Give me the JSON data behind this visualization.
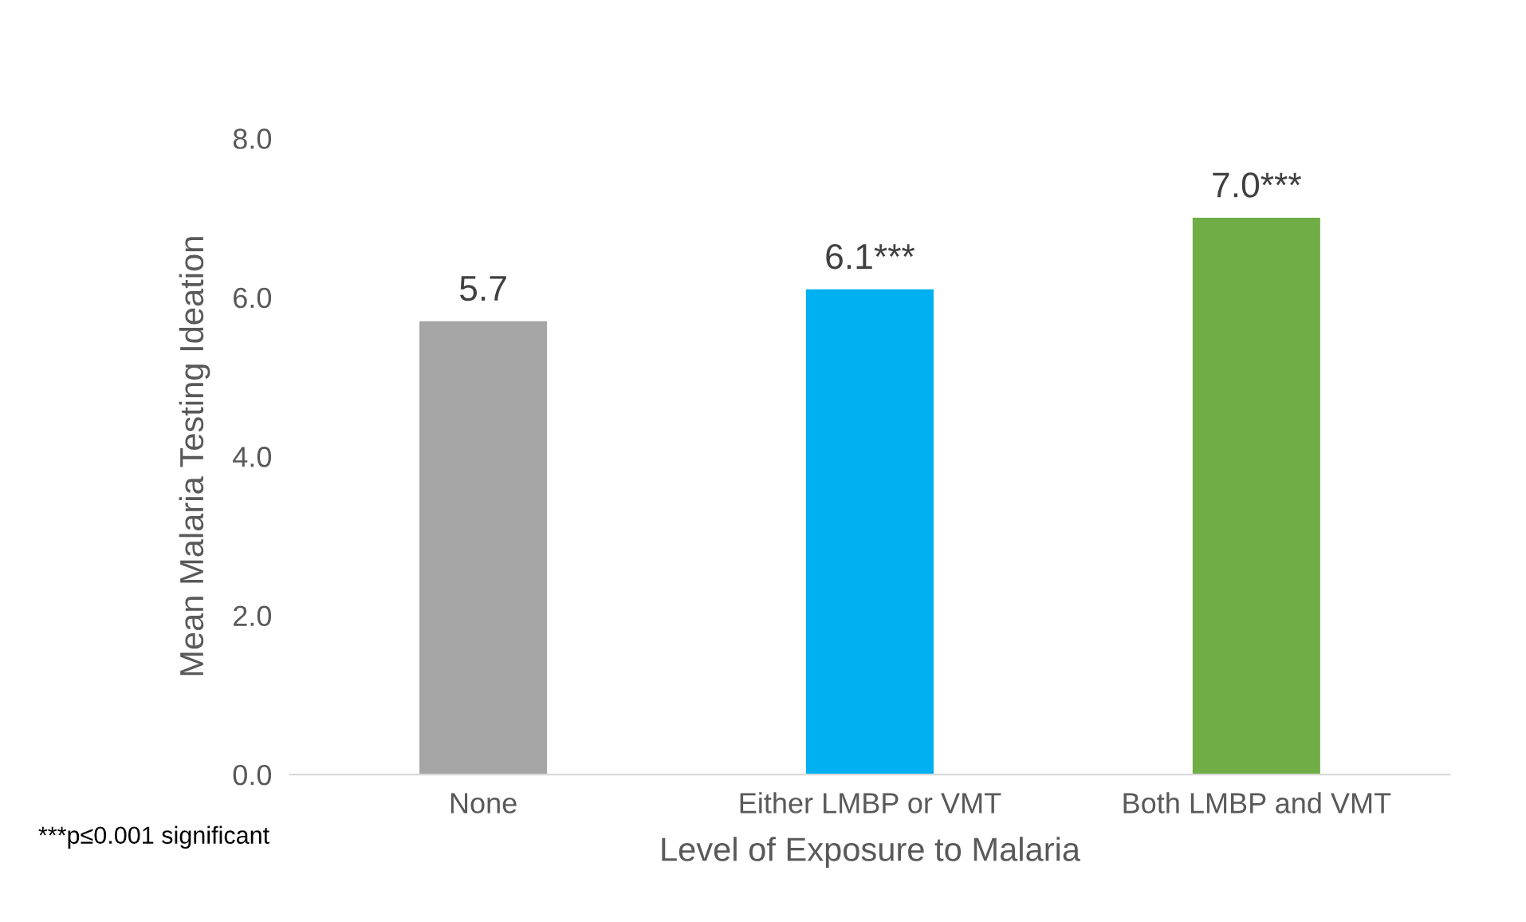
{
  "chart_data": {
    "type": "bar",
    "xlabel": "Level of Exposure to Malaria",
    "ylabel": "Mean Malaria Testing Ideation",
    "categories": [
      "None",
      "Either LMBP or VMT",
      "Both LMBP and VMT"
    ],
    "values": [
      5.7,
      6.1,
      7.0
    ],
    "colors": [
      "#a5a5a5",
      "#00b0f0",
      "#70ad47"
    ],
    "value_labels": [
      "5.7",
      "6.1***",
      "7.0***"
    ],
    "ylim": [
      0,
      8
    ],
    "yticks": [
      {
        "value": 0,
        "label": "0.0"
      },
      {
        "value": 2,
        "label": "2.0"
      },
      {
        "value": 4,
        "label": "4.0"
      },
      {
        "value": 6,
        "label": "6.0"
      },
      {
        "value": 8,
        "label": "8.0"
      }
    ],
    "annotations": [
      "***p≤0.001 significant"
    ]
  }
}
